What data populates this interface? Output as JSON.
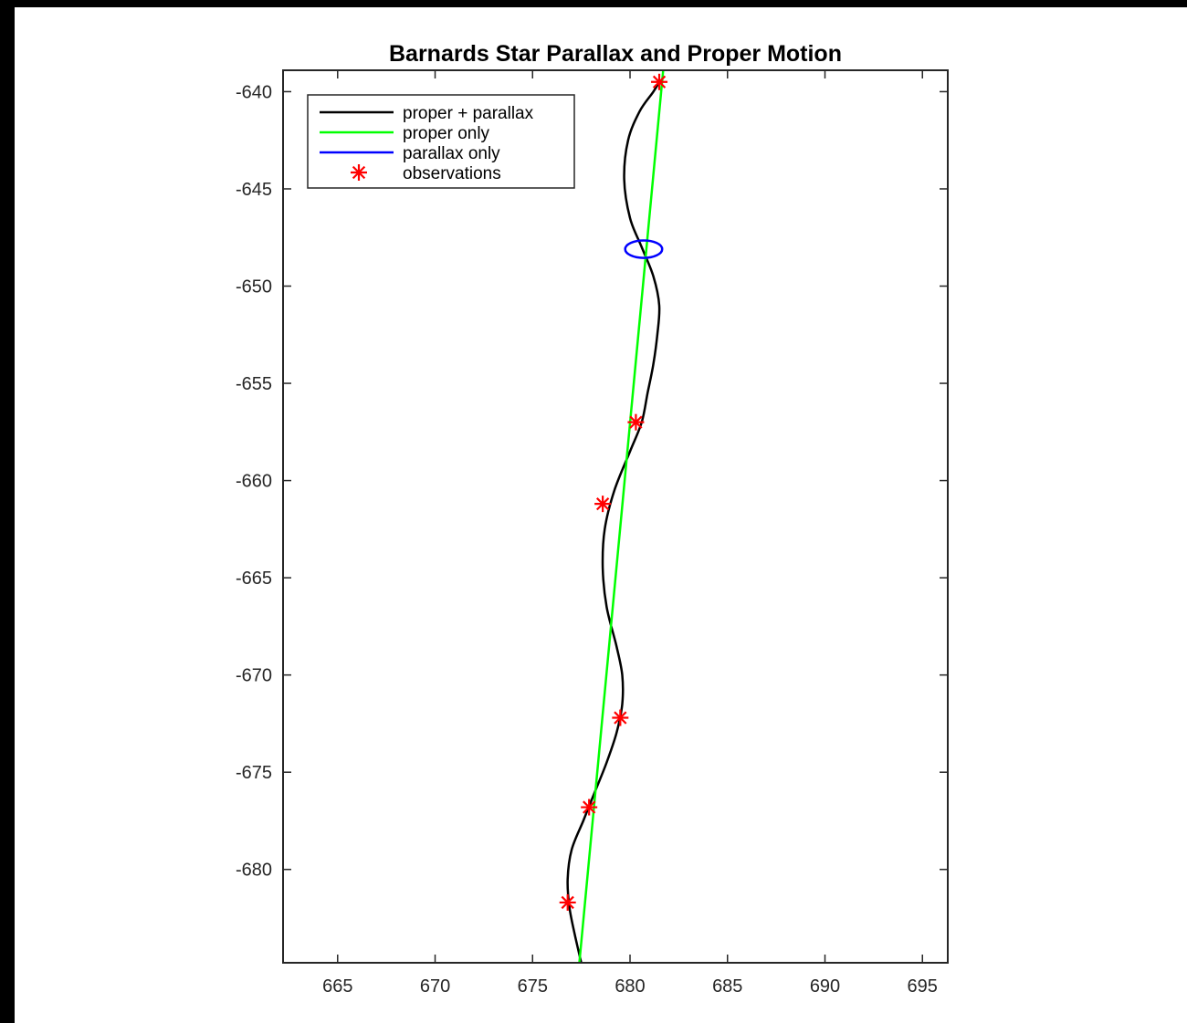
{
  "chart_data": {
    "type": "line",
    "title": "Barnards Star Parallax and Proper Motion",
    "xlabel": "",
    "ylabel": "",
    "xlim": [
      662.2,
      696.3
    ],
    "ylim": [
      -684.8,
      -638.9
    ],
    "xticks": [
      665,
      670,
      675,
      680,
      685,
      690,
      695
    ],
    "yticks": [
      -640,
      -645,
      -650,
      -655,
      -660,
      -665,
      -670,
      -675,
      -680
    ],
    "xtick_labels": [
      "665",
      "670",
      "675",
      "680",
      "685",
      "690",
      "695"
    ],
    "ytick_labels": [
      "-640",
      "-645",
      "-650",
      "-655",
      "-660",
      "-665",
      "-670",
      "-675",
      "-680"
    ],
    "grid": false,
    "legend_position": "top-left",
    "series": [
      {
        "name": "proper + parallax",
        "color": "#000000",
        "style": "line",
        "x": [
          677.5,
          677.2,
          676.9,
          676.8,
          677.0,
          677.6,
          678.2,
          678.8,
          679.3,
          679.6,
          679.6,
          679.3,
          678.8,
          678.6,
          678.7,
          679.2,
          680.0,
          680.6,
          680.9,
          681.2,
          681.4,
          681.5,
          681.2,
          680.6,
          680.0,
          679.7,
          679.9,
          680.5,
          681.2,
          681.5
        ],
        "y": [
          -684.8,
          -683.5,
          -682.0,
          -680.5,
          -679.0,
          -677.5,
          -676.0,
          -674.5,
          -673.0,
          -671.5,
          -670.0,
          -668.5,
          -666.5,
          -664.5,
          -662.5,
          -660.5,
          -658.5,
          -657.0,
          -655.5,
          -654.0,
          -652.5,
          -651.0,
          -649.5,
          -648.0,
          -646.5,
          -644.5,
          -642.5,
          -641.0,
          -640.0,
          -639.5
        ]
      },
      {
        "name": "proper only",
        "color": "#00ff00",
        "style": "line",
        "x": [
          677.4,
          681.7
        ],
        "y": [
          -684.8,
          -638.9
        ]
      },
      {
        "name": "parallax only",
        "color": "#0000ff",
        "style": "ellipse",
        "center": [
          680.7,
          -648.1
        ],
        "rx": 0.95,
        "ry": 0.45
      },
      {
        "name": "observations",
        "color": "#ff0000",
        "style": "marker",
        "marker": "*",
        "x": [
          681.5,
          680.3,
          678.6,
          679.5,
          677.9,
          676.8
        ],
        "y": [
          -639.5,
          -657.0,
          -661.2,
          -672.2,
          -676.8,
          -681.7
        ]
      }
    ]
  }
}
